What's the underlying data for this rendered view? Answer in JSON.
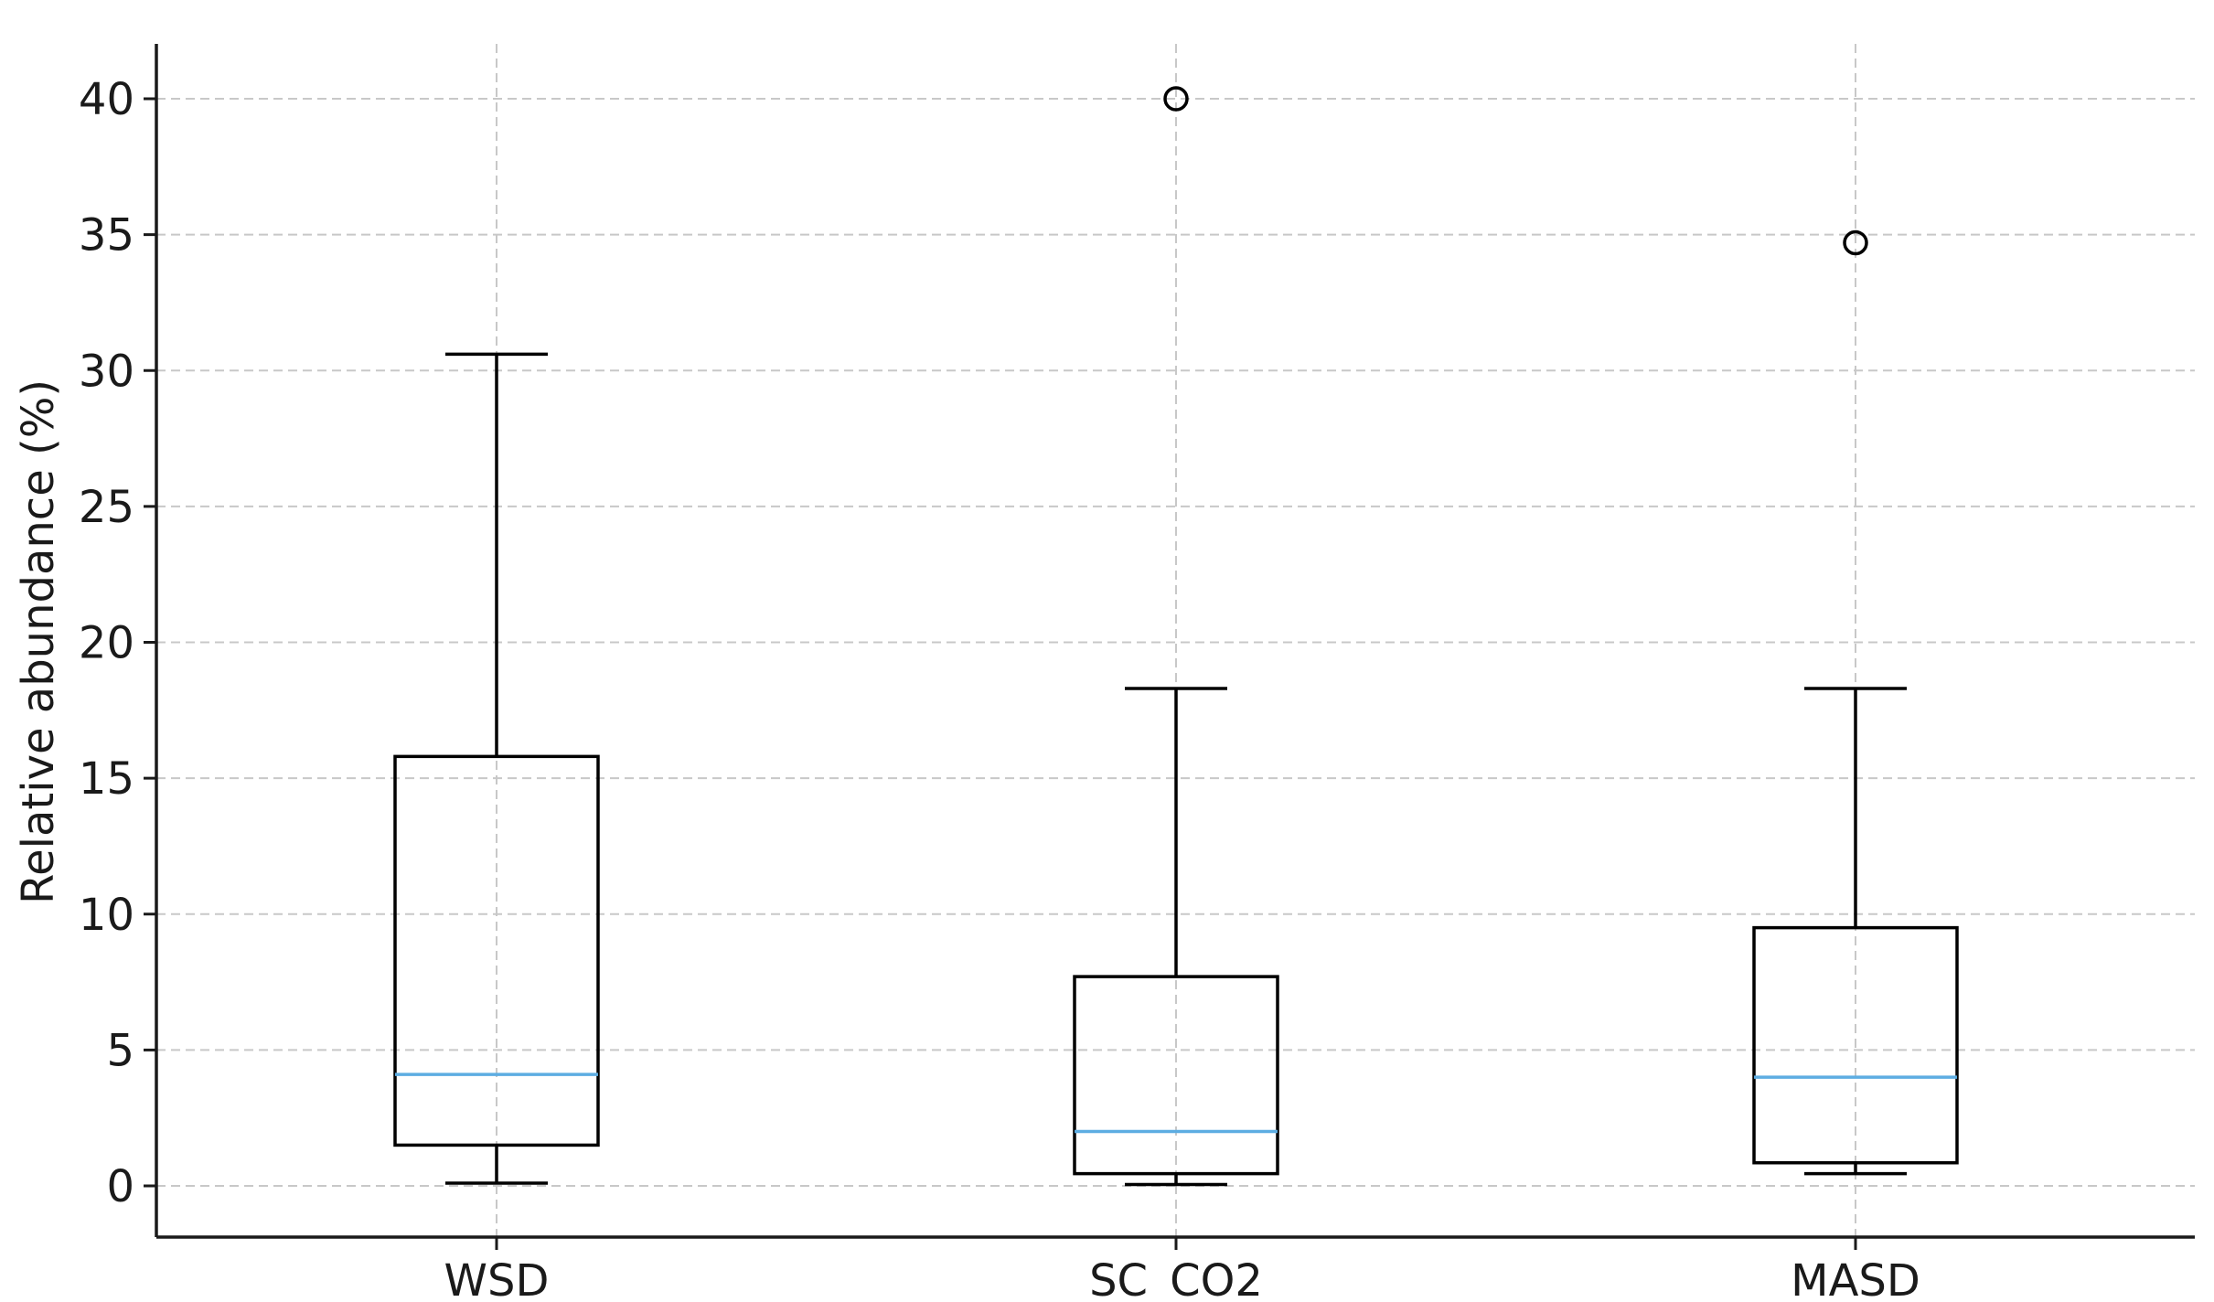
{
  "chart_data": {
    "type": "box",
    "title": "",
    "xlabel": "",
    "ylabel": "Relative abundance (%)",
    "ylim": [
      -2,
      42
    ],
    "yticks": [
      0,
      5,
      10,
      15,
      20,
      25,
      30,
      35,
      40
    ],
    "grid": true,
    "categories": [
      "WSD",
      "SC_CO2",
      "MASD"
    ],
    "boxes": [
      {
        "label": "WSD",
        "whisker_low": 0.1,
        "q1": 1.5,
        "median": 4.1,
        "q3": 15.8,
        "whisker_high": 30.6,
        "outliers": []
      },
      {
        "label": "SC_CO2",
        "whisker_low": 0.05,
        "q1": 0.45,
        "median": 2.0,
        "q3": 7.7,
        "whisker_high": 18.3,
        "outliers": [
          40.0
        ]
      },
      {
        "label": "MASD",
        "whisker_low": 0.45,
        "q1": 0.85,
        "median": 4.0,
        "q3": 9.5,
        "whisker_high": 18.3,
        "outliers": [
          34.7
        ]
      }
    ],
    "colors": {
      "box": "#000000",
      "median": "#5dade2",
      "grid": "#c8c8c8"
    }
  }
}
